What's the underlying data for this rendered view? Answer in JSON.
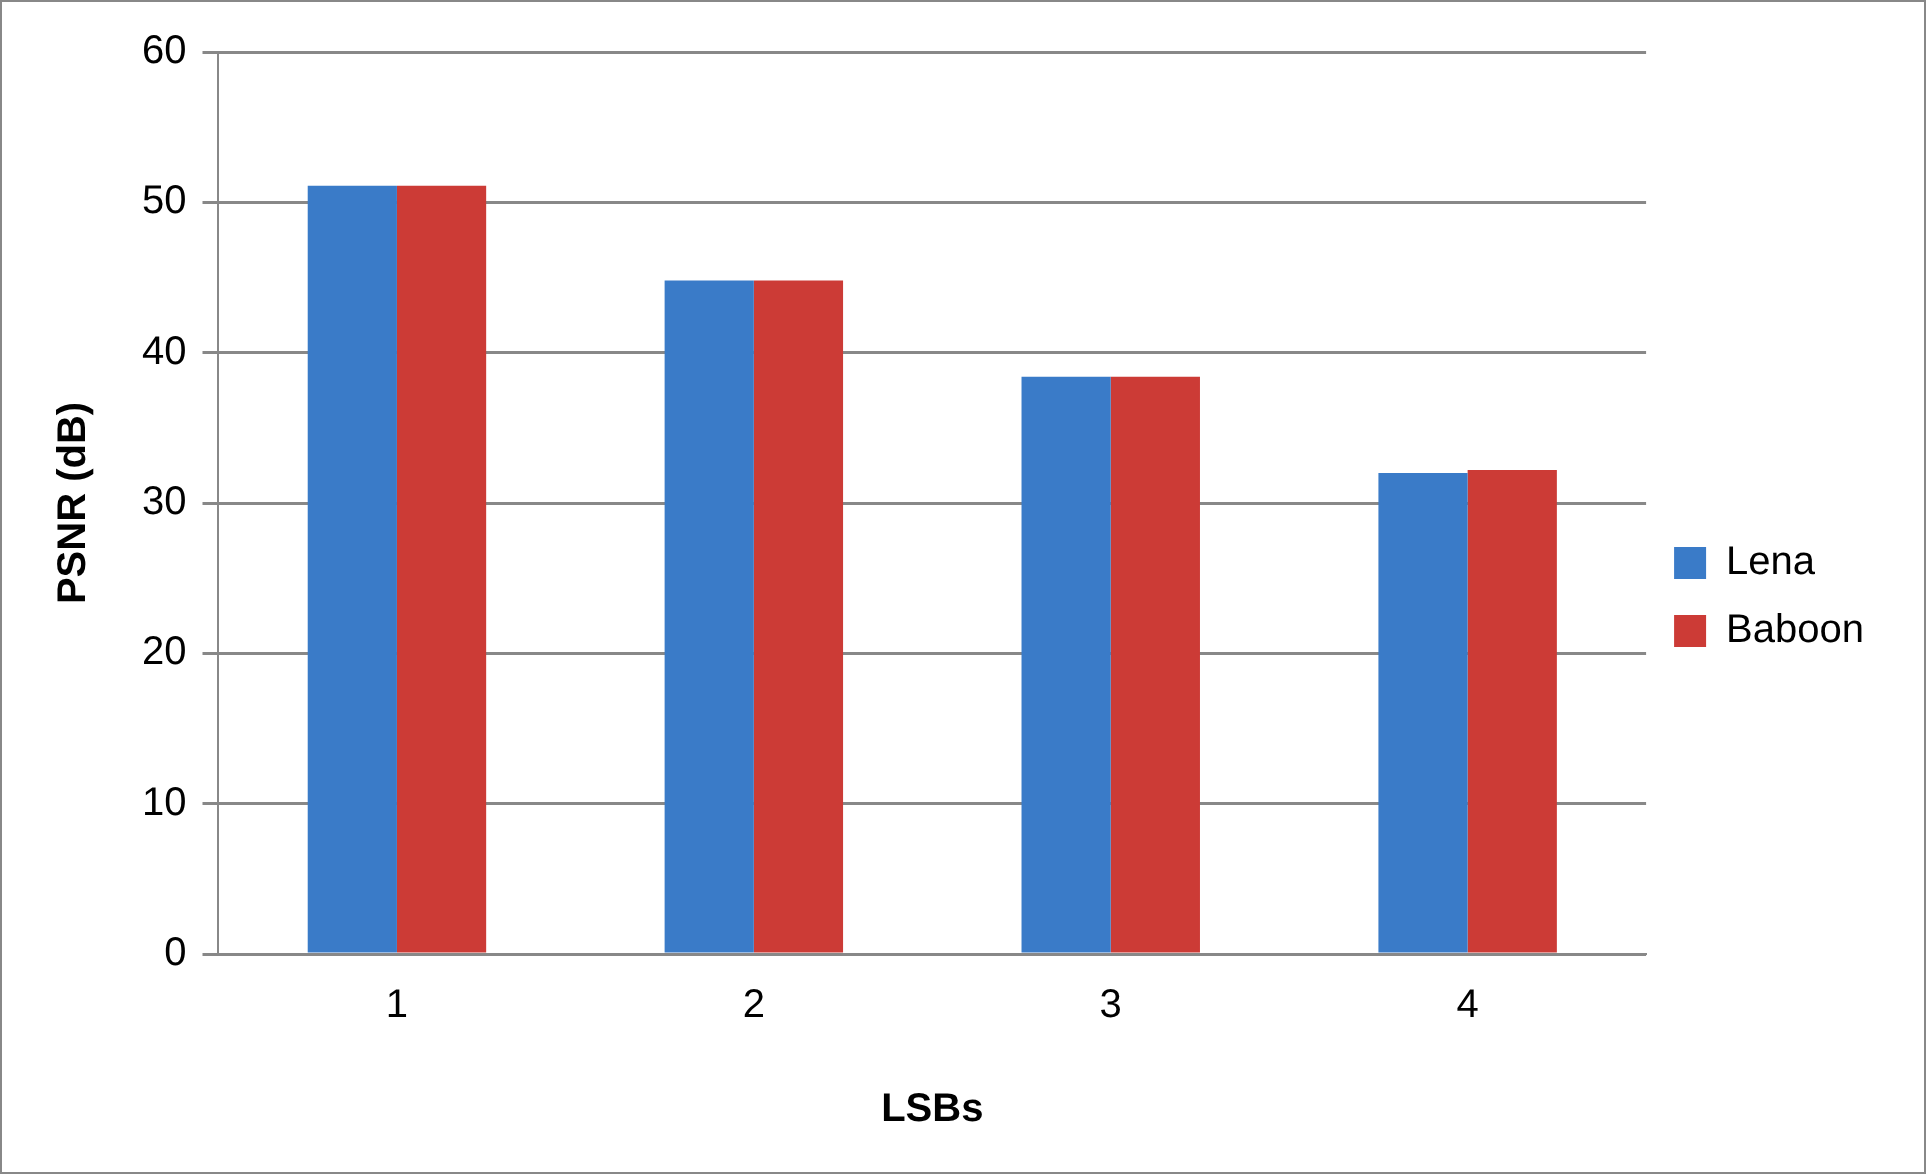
{
  "chart_data": {
    "type": "bar",
    "xlabel": "LSBs",
    "ylabel": "PSNR (dB)",
    "categories": [
      "1",
      "2",
      "3",
      "4"
    ],
    "series": [
      {
        "name": "Lena",
        "color": "#3a7bc8",
        "values": [
          51.1,
          44.8,
          38.4,
          32.0
        ]
      },
      {
        "name": "Baboon",
        "color": "#cc3b36",
        "values": [
          51.1,
          44.8,
          38.4,
          32.2
        ]
      }
    ],
    "ylim": [
      0,
      60
    ],
    "yticks": [
      0,
      10,
      20,
      30,
      40,
      50,
      60
    ],
    "grid": "y",
    "legend": "right"
  }
}
